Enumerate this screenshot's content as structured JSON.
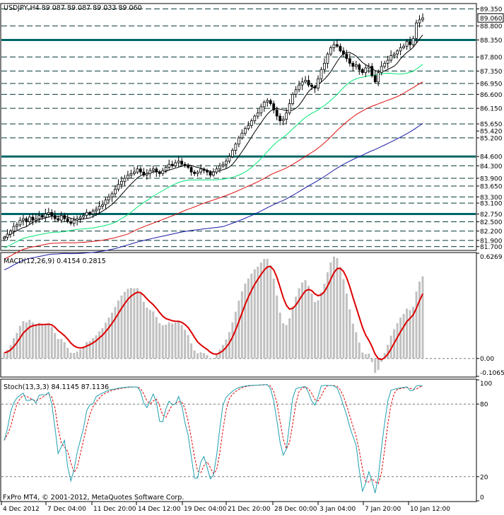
{
  "chart_data": [
    {
      "type": "candlestick",
      "symbol_header": "USDJPY,H4  89.087 89.087 89.033 89.060",
      "current_price": "89.060",
      "price_axis_labels": [
        "89.350",
        "88.800",
        "88.350",
        "87.800",
        "87.350",
        "86.950",
        "86.600",
        "86.150",
        "85.650",
        "85.420",
        "85.200",
        "84.600",
        "84.300",
        "83.900",
        "83.650",
        "83.300",
        "83.100",
        "82.750",
        "82.500",
        "82.200",
        "81.900",
        "81.700"
      ],
      "price_range": [
        81.6,
        89.5
      ],
      "horizontal_levels_thick": [
        88.35,
        84.6,
        82.75
      ],
      "horizontal_levels_dashed": [
        89.35,
        88.8,
        87.8,
        87.35,
        86.95,
        86.6,
        86.15,
        85.65,
        85.2,
        84.3,
        83.9,
        83.65,
        83.3,
        83.1,
        82.5,
        82.2,
        81.9,
        81.7
      ],
      "close_series": [
        82.0,
        82.1,
        82.2,
        82.35,
        82.4,
        82.55,
        82.6,
        82.5,
        82.65,
        82.55,
        82.6,
        82.7,
        82.65,
        82.75,
        82.8,
        82.7,
        82.6,
        82.55,
        82.7,
        82.6,
        82.5,
        82.45,
        82.55,
        82.6,
        82.65,
        82.7,
        82.8,
        82.75,
        82.85,
        82.9,
        83.0,
        83.05,
        83.2,
        83.3,
        83.4,
        83.55,
        83.7,
        83.8,
        83.9,
        84.0,
        84.05,
        84.1,
        84.2,
        84.1,
        84.0,
        84.05,
        84.15,
        84.2,
        84.1,
        84.05,
        84.15,
        84.25,
        84.35,
        84.3,
        84.4,
        84.45,
        84.35,
        84.3,
        84.25,
        84.1,
        84.05,
        84.1,
        84.2,
        84.15,
        84.1,
        84.0,
        84.1,
        84.2,
        84.3,
        84.35,
        84.45,
        84.6,
        84.8,
        85.0,
        85.2,
        85.35,
        85.5,
        85.6,
        85.75,
        85.9,
        86.0,
        86.2,
        86.35,
        86.4,
        86.3,
        86.1,
        85.9,
        85.75,
        85.8,
        86.0,
        86.3,
        86.6,
        86.75,
        86.9,
        87.0,
        87.05,
        86.9,
        86.85,
        86.8,
        87.1,
        87.4,
        87.6,
        87.9,
        88.1,
        88.2,
        88.15,
        88.0,
        87.9,
        87.75,
        87.6,
        87.5,
        87.55,
        87.4,
        87.3,
        87.45,
        87.5,
        87.2,
        87.0,
        87.3,
        87.5,
        87.6,
        87.7,
        87.85,
        87.9,
        88.0,
        88.1,
        88.15,
        88.3,
        88.2,
        88.4,
        88.9,
        89.0,
        89.06
      ],
      "moving_averages": [
        {
          "color": "#000000"
        },
        {
          "color": "#00e676"
        },
        {
          "color": "#dd1111"
        },
        {
          "color": "#1a1aa6"
        }
      ],
      "x_tick_labels": [
        "4 Dec 2012",
        "7 Dec 04:00",
        "11 Dec 20:00",
        "14 Dec 12:00",
        "19 Dec 04:00",
        "21 Dec 20:00",
        "28 Dec 00:00",
        "3 Jan 04:00",
        "7 Jan 20:00",
        "10 Jan 12:00"
      ]
    },
    {
      "type": "bar+line",
      "indicator_header": "MACD(12,26,9) 0.4154 0.2815",
      "y_axis_labels": [
        "0.6269",
        "0.00",
        "-0.1065"
      ],
      "ylim": [
        -0.1065,
        0.6269
      ],
      "histogram_color": "#c0c0c0",
      "signal_color": "#dd0000"
    },
    {
      "type": "line",
      "indicator_header": "Stoch(13,3,3) 84.1145 87.1136",
      "y_axis_labels": [
        "100",
        "80",
        "20",
        "0"
      ],
      "ylim": [
        0,
        100
      ],
      "k_color": "#20a0b0",
      "d_color": "#dd0000"
    }
  ],
  "footer": {
    "copyright": "FxPro MT4, © 2001-2012, MetaQuotes Software Corp."
  },
  "colors": {
    "grid_dashed": "#0a3a3a",
    "level_thick": "#006666",
    "axis": "#000000",
    "background": "#ffffff"
  }
}
